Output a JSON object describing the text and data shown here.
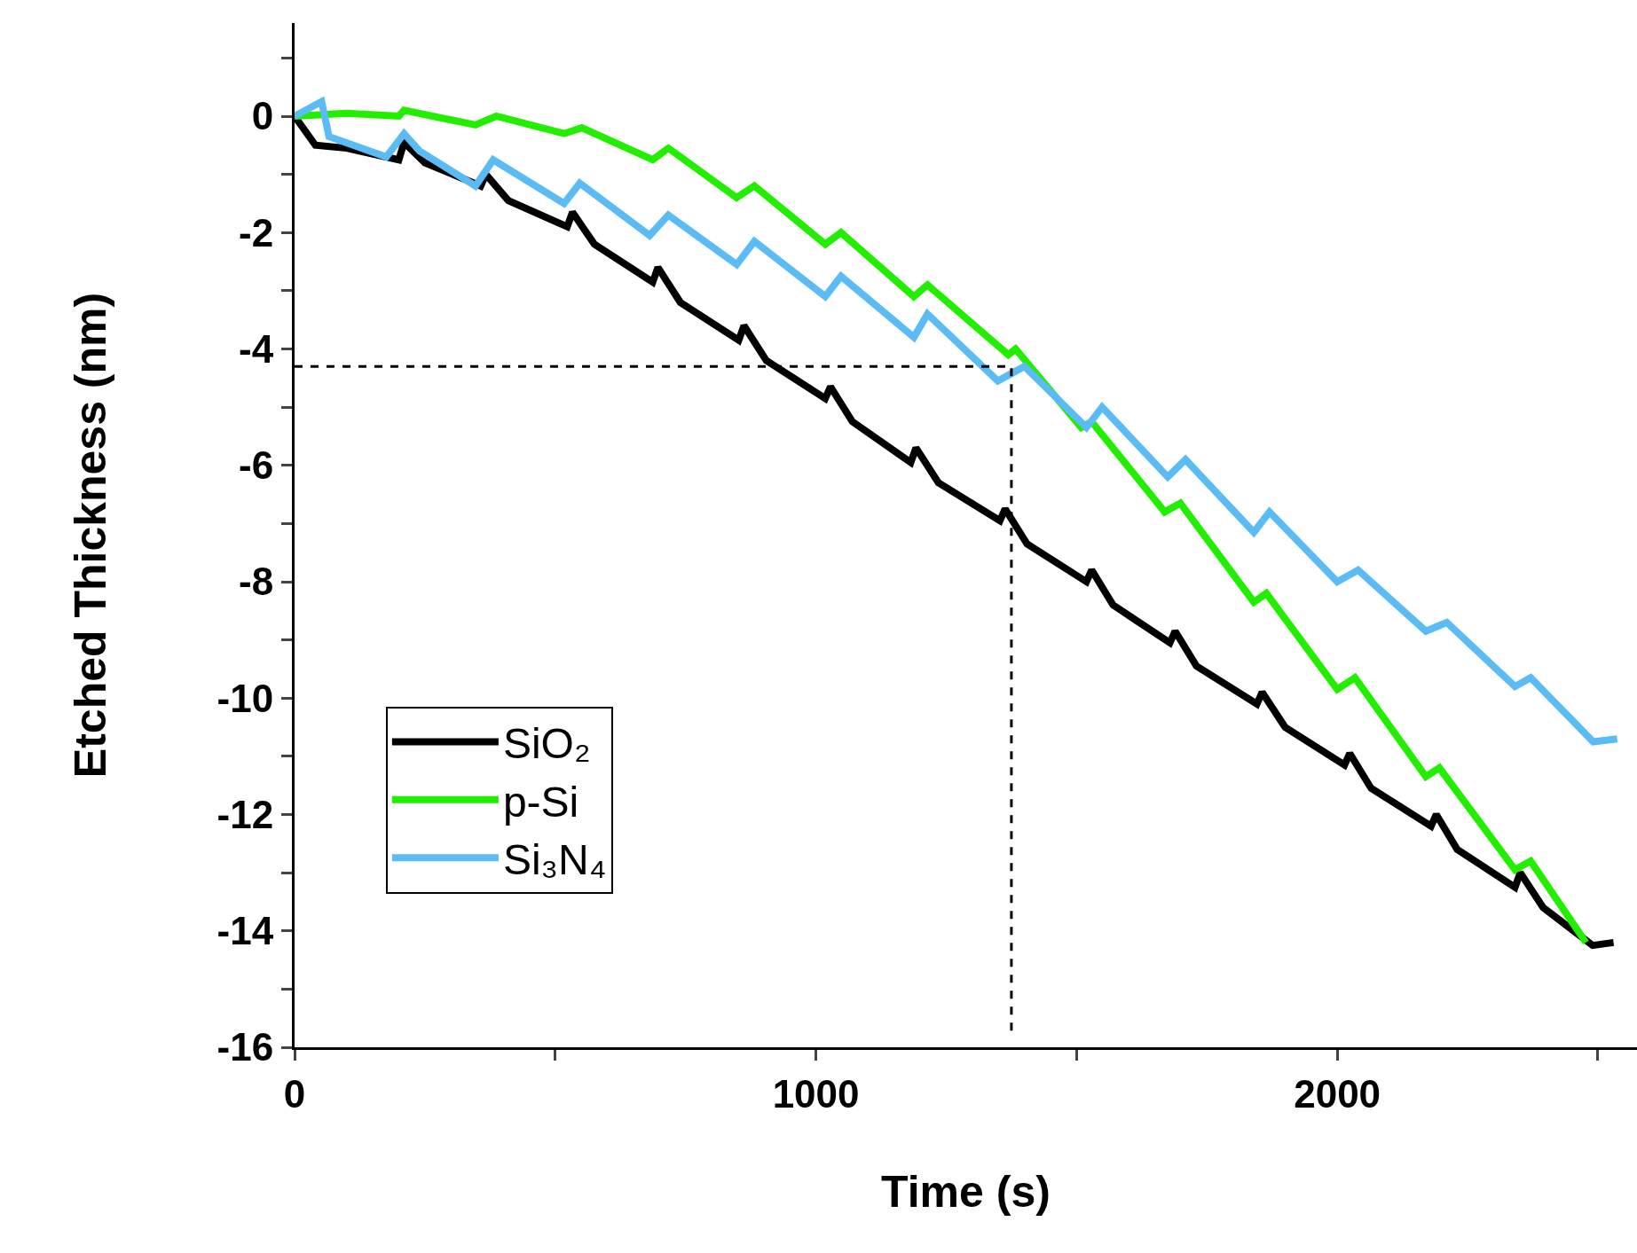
{
  "chart_data": {
    "type": "line",
    "xlabel": "Time (s)",
    "ylabel": "Etched Thickness (nm)",
    "xlim": [
      0,
      2575
    ],
    "ylim": [
      -16,
      1.6
    ],
    "xticks": [
      0,
      {
        "value": 500,
        "label": null
      },
      1000,
      {
        "value": 1500,
        "label": null
      },
      2000,
      {
        "value": 2500,
        "label": null
      }
    ],
    "yticks": [
      -16,
      {
        "value": -15,
        "label": null
      },
      -14,
      {
        "value": -13,
        "label": null
      },
      -12,
      {
        "value": -11,
        "label": null
      },
      -10,
      {
        "value": -9,
        "label": null
      },
      -8,
      {
        "value": -7,
        "label": null
      },
      -6,
      {
        "value": -5,
        "label": null
      },
      -4,
      {
        "value": -3,
        "label": null
      },
      -2,
      {
        "value": -1,
        "label": null
      },
      0,
      {
        "value": 1,
        "label": null
      }
    ],
    "legend": "bottom left",
    "marker": "none",
    "line_style": "solid",
    "series": [
      {
        "name": "SiO₂",
        "color": "#000000",
        "x": [
          0,
          40,
          100,
          200,
          210,
          250,
          357,
          367,
          410,
          523,
          533,
          575,
          687,
          697,
          740,
          852,
          862,
          905,
          1018,
          1028,
          1070,
          1182,
          1192,
          1235,
          1353,
          1363,
          1405,
          1519,
          1529,
          1570,
          1679,
          1689,
          1730,
          1846,
          1856,
          1900,
          2014,
          2024,
          2065,
          2180,
          2190,
          2230,
          2341,
          2351,
          2395,
          2490,
          2530
        ],
        "values": [
          0,
          -0.5,
          -0.55,
          -0.75,
          -0.45,
          -0.8,
          -1.2,
          -1.0,
          -1.45,
          -1.9,
          -1.65,
          -2.2,
          -2.85,
          -2.6,
          -3.2,
          -3.85,
          -3.6,
          -4.2,
          -4.85,
          -4.65,
          -5.25,
          -5.95,
          -5.7,
          -6.3,
          -6.95,
          -6.75,
          -7.35,
          -8.0,
          -7.8,
          -8.4,
          -9.05,
          -8.85,
          -9.45,
          -10.1,
          -9.9,
          -10.5,
          -11.15,
          -10.95,
          -11.55,
          -12.2,
          -12.0,
          -12.6,
          -13.25,
          -13.0,
          -13.6,
          -14.25,
          -14.2
        ]
      },
      {
        "name": "p-Si",
        "color": "#22ee00",
        "x": [
          0,
          100,
          200,
          210,
          347,
          387,
          517,
          551,
          687,
          717,
          848,
          882,
          1018,
          1048,
          1188,
          1214,
          1369,
          1383,
          1509,
          1529,
          1669,
          1699,
          1840,
          1864,
          2000,
          2034,
          2170,
          2196,
          2341,
          2371,
          2477
        ],
        "values": [
          0,
          0.05,
          0,
          0.1,
          -0.15,
          0,
          -0.3,
          -0.2,
          -0.75,
          -0.55,
          -1.4,
          -1.2,
          -2.2,
          -2.0,
          -3.1,
          -2.9,
          -4.1,
          -4.0,
          -5.35,
          -5.25,
          -6.8,
          -6.65,
          -8.35,
          -8.2,
          -9.85,
          -9.65,
          -11.35,
          -11.2,
          -12.95,
          -12.8,
          -14.2
        ]
      },
      {
        "name": "Si₃N₄",
        "color": "#5bbcf5",
        "x": [
          0,
          52,
          66,
          176,
          210,
          240,
          347,
          381,
          517,
          547,
          681,
          717,
          848,
          882,
          1018,
          1048,
          1188,
          1214,
          1349,
          1400,
          1519,
          1549,
          1675,
          1709,
          1840,
          1870,
          2000,
          2040,
          2170,
          2210,
          2341,
          2371,
          2491,
          2537
        ],
        "values": [
          0,
          0.25,
          -0.35,
          -0.7,
          -0.3,
          -0.6,
          -1.2,
          -0.75,
          -1.5,
          -1.15,
          -2.05,
          -1.7,
          -2.55,
          -2.15,
          -3.1,
          -2.75,
          -3.8,
          -3.4,
          -4.55,
          -4.3,
          -5.35,
          -5.0,
          -6.2,
          -5.9,
          -7.15,
          -6.8,
          -8.0,
          -7.8,
          -8.85,
          -8.7,
          -9.8,
          -9.65,
          -10.75,
          -10.7
        ]
      },
      {
        "color": "#000000",
        "line_style": "dashed",
        "x": [
          0,
          1375,
          1375
        ],
        "values": [
          -4.3,
          -4.3,
          -15.8
        ]
      }
    ]
  }
}
